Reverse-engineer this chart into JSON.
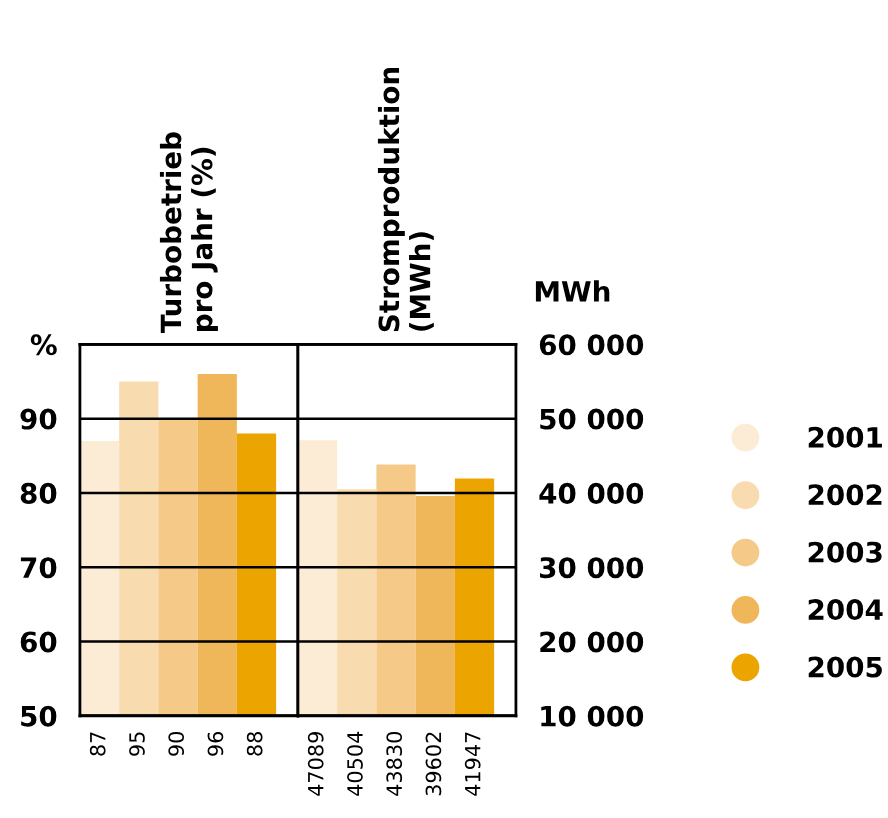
{
  "chart_data": [
    {
      "type": "bar",
      "title": "Turbobetrieb\npro Jahr (%)",
      "categories": [
        null
      ],
      "series": [
        {
          "color": "#fcebd5",
          "values": [
            87
          ]
        },
        {
          "color": "#f9dbb0",
          "values": [
            95
          ]
        },
        {
          "color": "#f5c987",
          "values": [
            90
          ]
        },
        {
          "color": "#f0b65a",
          "values": [
            96
          ]
        },
        {
          "color": "#eba400",
          "values": [
            88
          ]
        }
      ],
      "ylim": [
        50,
        100
      ],
      "yticks": [
        50,
        60,
        70,
        80,
        90,
        {
          "value": 100,
          "label": "%"
        }
      ],
      "grid": "y",
      "data_labels": true
    },
    {
      "type": "bar",
      "title": "Stromproduktion\n(MWh)",
      "ylabel": "MWh",
      "categories": [
        null
      ],
      "series": [
        {
          "name": "2001",
          "color": "#fcebd5",
          "values": [
            47089
          ]
        },
        {
          "name": "2002",
          "color": "#f9dbb0",
          "values": [
            40504
          ]
        },
        {
          "name": "2003",
          "color": "#f5c987",
          "values": [
            43830
          ]
        },
        {
          "name": "2004",
          "color": "#f0b65a",
          "values": [
            39602
          ]
        },
        {
          "name": "2005",
          "color": "#eba400",
          "values": [
            41947
          ]
        }
      ],
      "ylim": [
        10000,
        60000
      ],
      "yticks": [
        {
          "value": 10000,
          "label": "10 000"
        },
        {
          "value": 20000,
          "label": "20 000"
        },
        {
          "value": 30000,
          "label": "30 000"
        },
        {
          "value": 40000,
          "label": "40 000"
        },
        {
          "value": 50000,
          "label": "50 000"
        },
        {
          "value": 60000,
          "label": "60 000"
        }
      ],
      "grid": "y",
      "data_labels": true,
      "legend": "right"
    }
  ]
}
